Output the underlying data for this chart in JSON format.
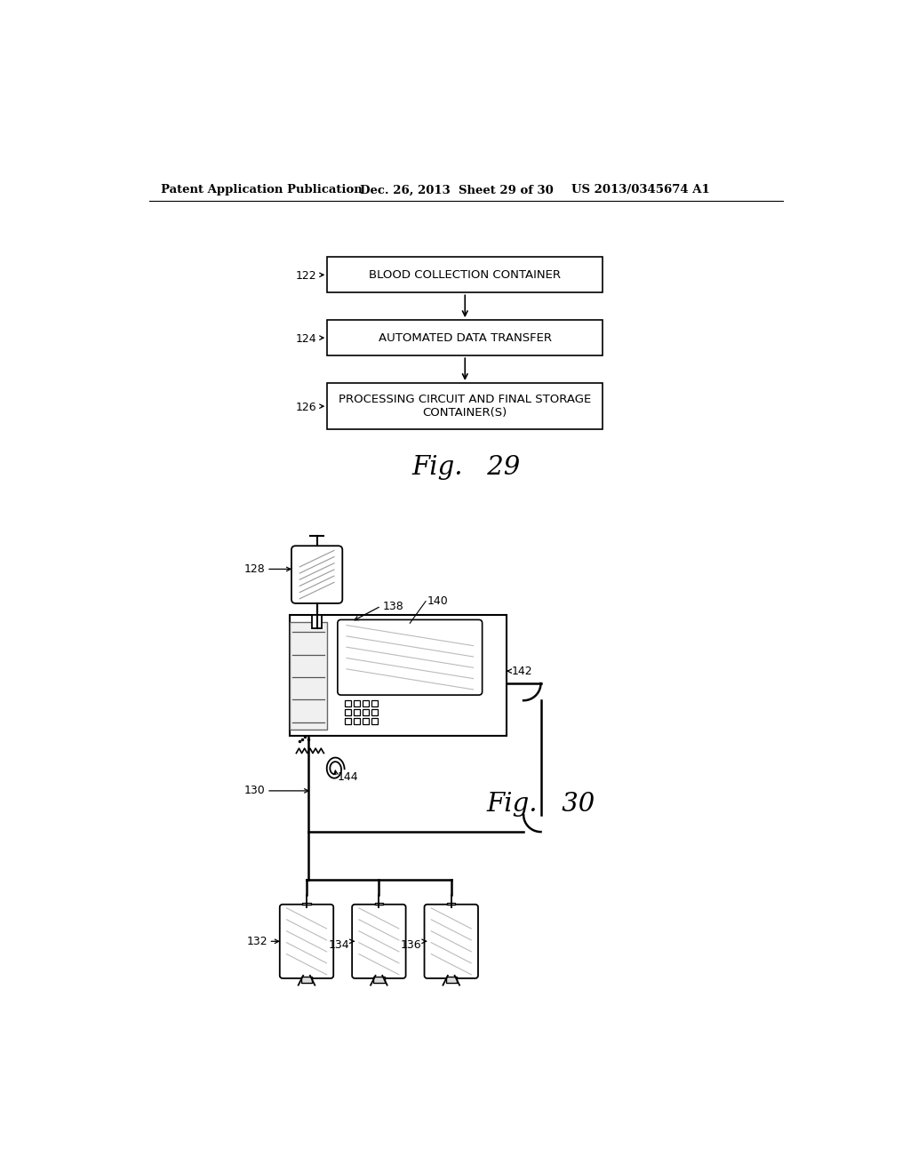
{
  "bg_color": "#ffffff",
  "header_left": "Patent Application Publication",
  "header_mid": "Dec. 26, 2013  Sheet 29 of 30",
  "header_right": "US 2013/0345674 A1",
  "fig29_label": "Fig.   29",
  "fig30_label": "Fig.   30",
  "box1_label": "BLOOD COLLECTION CONTAINER",
  "box2_label": "AUTOMATED DATA TRANSFER",
  "box3_label": "PROCESSING CIRCUIT AND FINAL STORAGE\nCONTAINER(S)",
  "ref122": "122",
  "ref124": "124",
  "ref126": "126",
  "ref128": "128",
  "ref130": "130",
  "ref132": "132",
  "ref134": "134",
  "ref136": "136",
  "ref138": "138",
  "ref140": "140",
  "ref142": "142",
  "ref144": "144"
}
